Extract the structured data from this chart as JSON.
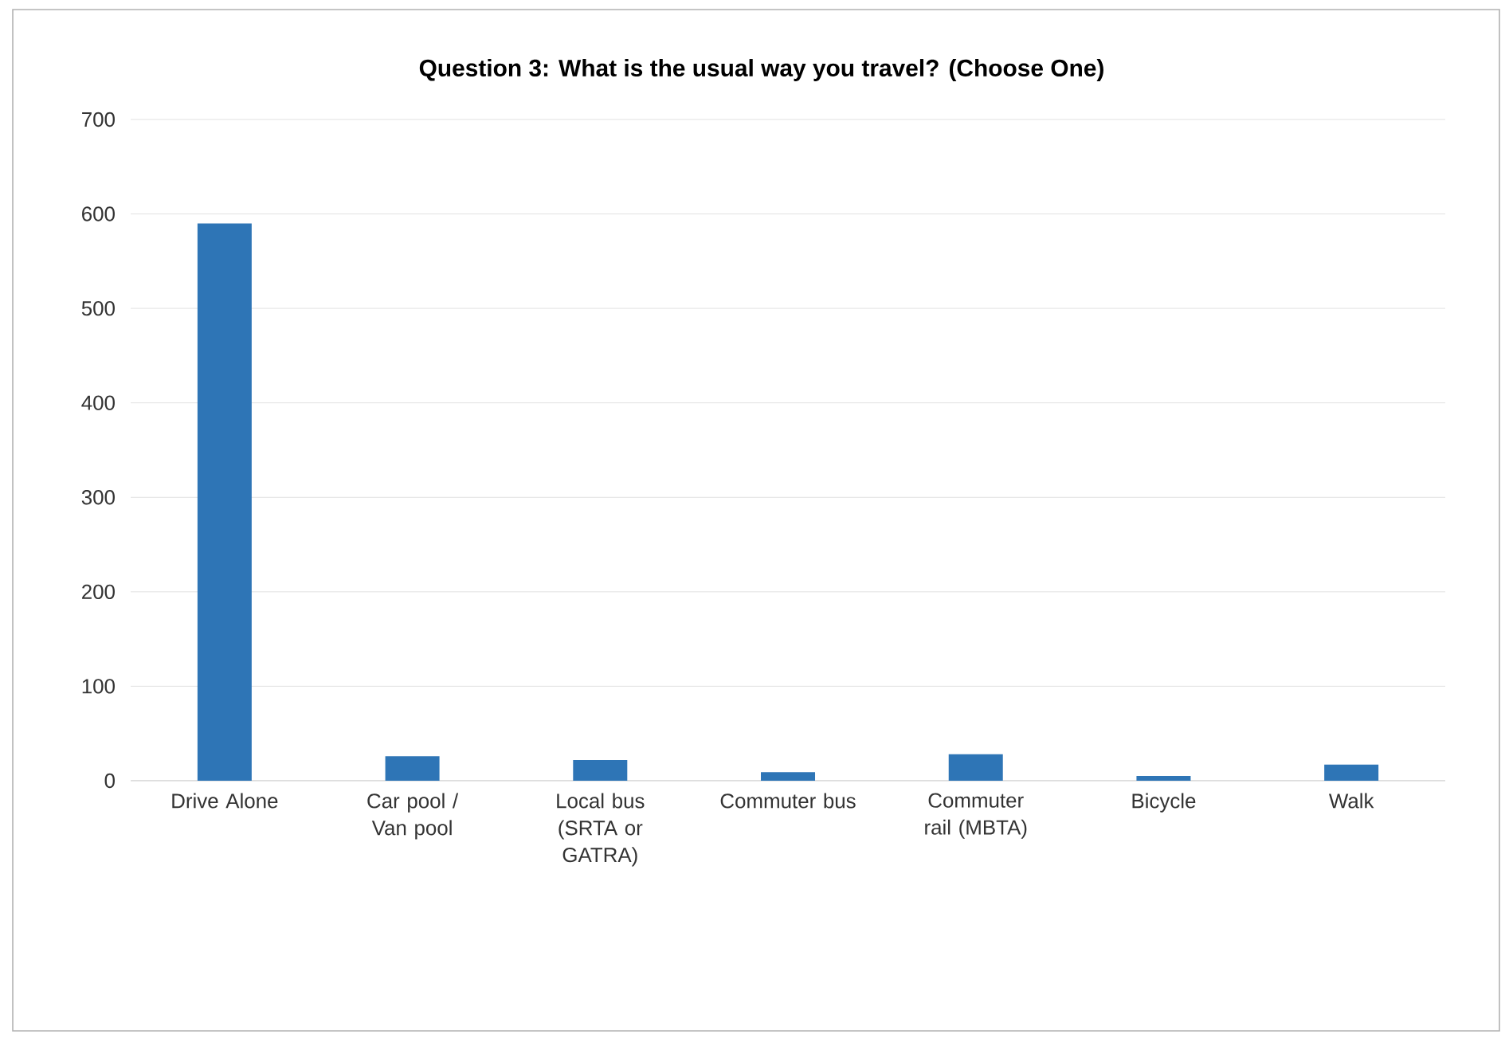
{
  "chart_data": {
    "type": "bar",
    "title": "Question 3: What is the usual way you travel? (Choose One)",
    "categories": [
      "Drive Alone",
      "Car pool / Van pool",
      "Local bus (SRTA or GATRA)",
      "Commuter bus",
      "Commuter rail (MBTA)",
      "Bicycle",
      "Walk"
    ],
    "values": [
      590,
      26,
      22,
      9,
      28,
      5,
      17
    ],
    "color": "#2e75b6",
    "ylim": [
      0,
      700
    ],
    "yticks": [
      0,
      100,
      200,
      300,
      400,
      500,
      600,
      700
    ],
    "grid": "y"
  }
}
